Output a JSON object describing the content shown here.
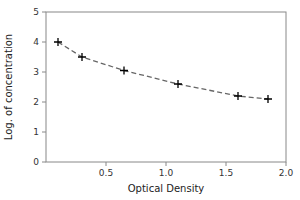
{
  "chart_data": {
    "type": "line",
    "x": [
      0.1,
      0.3,
      0.65,
      1.1,
      1.6,
      1.85
    ],
    "values": [
      4.0,
      3.5,
      3.05,
      2.6,
      2.2,
      2.1
    ],
    "x_label": "Optical Density",
    "y_label": "Log. of concentration",
    "xlim": [
      0,
      2
    ],
    "ylim": [
      0,
      5
    ],
    "xticks": [
      0.5,
      {
        "value": 1.0,
        "label": "1.0"
      },
      1.5,
      {
        "value": 2.0,
        "label": "2.0"
      }
    ],
    "yticks": [
      0,
      1,
      2,
      3,
      4,
      5
    ],
    "color": "#666666",
    "marker": "plus",
    "line_style": "dashed"
  }
}
